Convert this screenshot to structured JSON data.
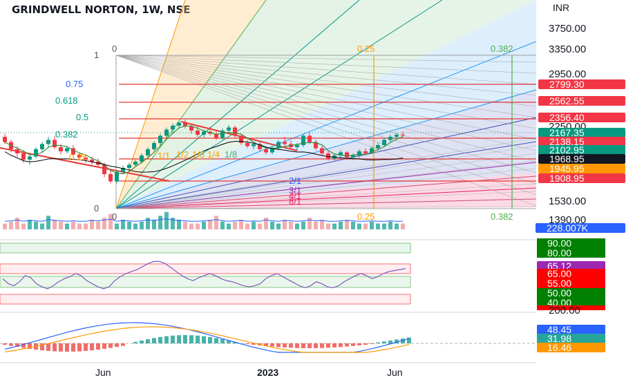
{
  "header": {
    "title": "GRINDWELL NORTON, 1W, NSE",
    "currency": "INR"
  },
  "chart_data": {
    "type": "candlestick",
    "price_axis": {
      "ticks": [
        "3750.00",
        "3350.00",
        "2950.00",
        "2250.00",
        "1530.00",
        "1390.00"
      ],
      "tick_values": [
        3750,
        3350,
        2950,
        2250,
        1530,
        1390
      ]
    },
    "price_tags": [
      {
        "label": "2799.30",
        "color": "#f23645"
      },
      {
        "label": "2562.55",
        "color": "#f23645"
      },
      {
        "label": "2356.40",
        "color": "#f23645"
      },
      {
        "label": "2167.35",
        "color": "#089981"
      },
      {
        "label": "2138.15",
        "color": "#f23645"
      },
      {
        "label": "2102.95",
        "color": "#089981"
      },
      {
        "label": "1968.95",
        "color": "#131722"
      },
      {
        "label": "1945.95",
        "color": "#ff9800"
      },
      {
        "label": "1908.95",
        "color": "#f23645"
      }
    ],
    "volume_tag": {
      "label": "228.007K",
      "color": "#2962ff"
    },
    "fib_levels_left": [
      {
        "label": "1",
        "color": "#555555"
      },
      {
        "label": "0.75",
        "color": "#2962ff"
      },
      {
        "label": "0.618",
        "color": "#089981"
      },
      {
        "label": "0.5",
        "color": "#089981"
      },
      {
        "label": "0.382",
        "color": "#089981"
      },
      {
        "label": "0.25",
        "color": "#ff9800"
      },
      {
        "label": "0",
        "color": "#555555"
      }
    ],
    "fib_time_labels": [
      {
        "label": "0",
        "color": "#555555"
      },
      {
        "label": "0.25",
        "color": "#ff9800"
      },
      {
        "label": "0.382",
        "color": "#4caf50"
      }
    ],
    "gann_fan_labels": [
      {
        "label": "1/1",
        "color": "#ff9800"
      },
      {
        "label": "1/2",
        "color": "#ff9800"
      },
      {
        "label": "1/3",
        "color": "#ff9800"
      },
      {
        "label": "1/4",
        "color": "#ff9800"
      },
      {
        "label": "1/8",
        "color": "#4caf50"
      },
      {
        "label": "2/1",
        "color": "#2962ff"
      },
      {
        "label": "3/1",
        "color": "#9c27b0"
      },
      {
        "label": "4/1",
        "color": "#e91e63"
      },
      {
        "label": "8/1",
        "color": "#e91e63"
      }
    ],
    "rsi": {
      "value_tag": {
        "label": "65.12",
        "color": "#9c27b0"
      },
      "level_tags": [
        {
          "label": "90.00",
          "color": "#008000"
        },
        {
          "label": "80.00",
          "color": "#008000"
        },
        {
          "label": "65.00",
          "color": "#ff0000"
        },
        {
          "label": "55.00",
          "color": "#ff0000"
        },
        {
          "label": "50.00",
          "color": "#008000"
        },
        {
          "label": "40.00",
          "color": "#008000"
        }
      ],
      "values": [
        55,
        50,
        48,
        52,
        58,
        56,
        50,
        47,
        45,
        48,
        52,
        55,
        57,
        60,
        58,
        53,
        50,
        47,
        45,
        47,
        53,
        57,
        60,
        62,
        64,
        67,
        70,
        72,
        72,
        70,
        66,
        62,
        58,
        55,
        53,
        56,
        58,
        60,
        58,
        55,
        53,
        52,
        50,
        48,
        47,
        48,
        50,
        55,
        58,
        60,
        57,
        54,
        51,
        48,
        46,
        48,
        52,
        50,
        47,
        46,
        48,
        52,
        55,
        58,
        60,
        58,
        55,
        57,
        60,
        62,
        63,
        64,
        65
      ]
    },
    "macd": {
      "tags": [
        {
          "label": "48.45",
          "color": "#2962ff"
        },
        {
          "label": "31.98",
          "color": "#26a69a"
        },
        {
          "label": "16.46",
          "color": "#ff9800"
        }
      ],
      "cut_label": "200.00"
    },
    "x_axis": {
      "labels": [
        "Jun",
        "2023",
        "Jun"
      ],
      "bold": [
        false,
        true,
        false
      ]
    },
    "candles": [
      [
        2150,
        2180,
        2080,
        2100
      ],
      [
        2100,
        2120,
        2000,
        2030
      ],
      [
        2030,
        2060,
        1960,
        1990
      ],
      [
        1990,
        2020,
        1900,
        1930
      ],
      [
        1930,
        1980,
        1880,
        1960
      ],
      [
        1960,
        2050,
        1940,
        2030
      ],
      [
        2030,
        2100,
        2000,
        2080
      ],
      [
        2080,
        2150,
        2050,
        2120
      ],
      [
        2120,
        2160,
        2030,
        2050
      ],
      [
        2050,
        2080,
        1980,
        2010
      ],
      [
        2010,
        2060,
        1990,
        2040
      ],
      [
        2040,
        2070,
        1960,
        1980
      ],
      [
        1980,
        2000,
        1920,
        1950
      ],
      [
        1950,
        1980,
        1900,
        1930
      ],
      [
        1930,
        1960,
        1880,
        1910
      ],
      [
        1910,
        1940,
        1860,
        1880
      ],
      [
        1880,
        1900,
        1760,
        1790
      ],
      [
        1790,
        1820,
        1700,
        1720
      ],
      [
        1720,
        1830,
        1700,
        1810
      ],
      [
        1810,
        1870,
        1790,
        1850
      ],
      [
        1850,
        1900,
        1830,
        1880
      ],
      [
        1880,
        1930,
        1860,
        1910
      ],
      [
        1910,
        1990,
        1890,
        1970
      ],
      [
        1970,
        2050,
        1950,
        2030
      ],
      [
        2030,
        2110,
        2010,
        2090
      ],
      [
        2090,
        2180,
        2070,
        2160
      ],
      [
        2160,
        2240,
        2140,
        2220
      ],
      [
        2220,
        2290,
        2190,
        2260
      ],
      [
        2260,
        2320,
        2230,
        2300
      ],
      [
        2300,
        2340,
        2230,
        2250
      ],
      [
        2250,
        2290,
        2180,
        2210
      ],
      [
        2210,
        2250,
        2150,
        2170
      ],
      [
        2170,
        2220,
        2140,
        2200
      ],
      [
        2200,
        2250,
        2160,
        2180
      ],
      [
        2180,
        2210,
        2120,
        2140
      ],
      [
        2140,
        2230,
        2120,
        2210
      ],
      [
        2210,
        2270,
        2190,
        2240
      ],
      [
        2240,
        2260,
        2140,
        2160
      ],
      [
        2160,
        2180,
        2070,
        2090
      ],
      [
        2090,
        2120,
        2040,
        2060
      ],
      [
        2060,
        2100,
        2030,
        2080
      ],
      [
        2080,
        2100,
        2010,
        2030
      ],
      [
        2030,
        2050,
        1980,
        2000
      ],
      [
        2000,
        2060,
        1980,
        2040
      ],
      [
        2040,
        2120,
        2020,
        2100
      ],
      [
        2100,
        2150,
        2060,
        2080
      ],
      [
        2080,
        2110,
        2030,
        2050
      ],
      [
        2050,
        2090,
        2020,
        2070
      ],
      [
        2070,
        2180,
        2050,
        2160
      ],
      [
        2160,
        2190,
        2080,
        2100
      ],
      [
        2100,
        2120,
        2020,
        2040
      ],
      [
        2040,
        2060,
        1970,
        1990
      ],
      [
        1990,
        2010,
        1920,
        1940
      ],
      [
        1940,
        1990,
        1920,
        1970
      ],
      [
        1970,
        2020,
        1950,
        2000
      ],
      [
        2000,
        2010,
        1930,
        1950
      ],
      [
        1950,
        1990,
        1930,
        1970
      ],
      [
        1970,
        2030,
        1950,
        2010
      ],
      [
        2010,
        2040,
        1970,
        1990
      ],
      [
        1990,
        2060,
        1980,
        2040
      ],
      [
        2040,
        2090,
        2020,
        2070
      ],
      [
        2070,
        2140,
        2050,
        2120
      ],
      [
        2120,
        2170,
        2090,
        2150
      ],
      [
        2150,
        2190,
        2120,
        2170
      ],
      [
        2170,
        2200,
        2140,
        2167
      ]
    ],
    "volumes": [
      0.3,
      0.4,
      0.6,
      0.3,
      0.5,
      0.4,
      0.3,
      0.7,
      0.5,
      0.4,
      0.3,
      0.4,
      0.3,
      0.3,
      0.5,
      0.4,
      0.6,
      0.8,
      0.3,
      0.5,
      0.4,
      0.3,
      0.4,
      0.6,
      0.5,
      0.7,
      0.9,
      0.6,
      0.5,
      0.4,
      0.3,
      0.3,
      0.4,
      0.5,
      0.7,
      0.4,
      0.3,
      0.4,
      0.5,
      0.3,
      0.4,
      0.3,
      0.6,
      0.4,
      0.3,
      0.5,
      0.4,
      0.3,
      0.4,
      0.6,
      0.4,
      0.5,
      0.3,
      0.3,
      0.4,
      0.5,
      0.4,
      0.3,
      0.3,
      0.4,
      0.3,
      0.3,
      0.4,
      0.3,
      0.3
    ]
  }
}
